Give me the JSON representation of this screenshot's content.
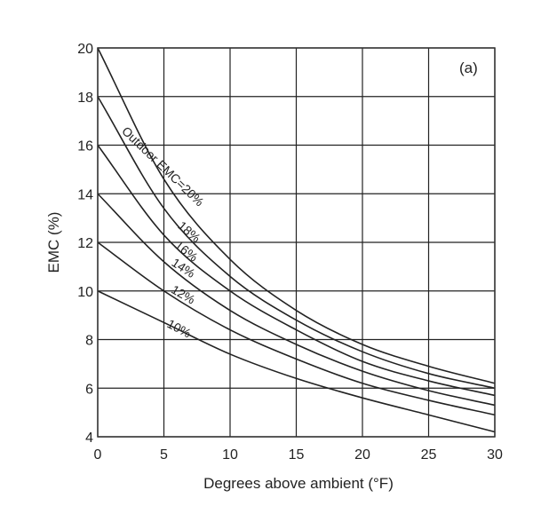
{
  "chart_data": {
    "type": "line",
    "panel_label": "(a)",
    "xlabel": "Degrees above ambient (°F)",
    "ylabel": "EMC (%)",
    "xlim": [
      0,
      30
    ],
    "ylim": [
      4,
      20
    ],
    "xticks": [
      0,
      5,
      10,
      15,
      20,
      25,
      30
    ],
    "yticks": [
      4,
      6,
      8,
      10,
      12,
      14,
      16,
      18,
      20
    ],
    "grid": true,
    "x": [
      0,
      5,
      10,
      15,
      20,
      25,
      30
    ],
    "series": [
      {
        "name": "Outdoor EMC=20%",
        "values": [
          20.0,
          14.6,
          11.3,
          9.2,
          7.8,
          6.9,
          6.2
        ]
      },
      {
        "name": "18%",
        "values": [
          18.0,
          13.4,
          10.6,
          8.8,
          7.5,
          6.6,
          6.0
        ]
      },
      {
        "name": "16%",
        "values": [
          16.0,
          12.3,
          10.0,
          8.4,
          7.1,
          6.3,
          5.7
        ]
      },
      {
        "name": "14%",
        "values": [
          14.0,
          11.2,
          9.2,
          7.8,
          6.7,
          5.9,
          5.3
        ]
      },
      {
        "name": "12%",
        "values": [
          12.0,
          10.0,
          8.4,
          7.2,
          6.2,
          5.5,
          4.9
        ]
      },
      {
        "name": "10%",
        "values": [
          10.0,
          8.7,
          7.4,
          6.4,
          5.6,
          4.9,
          4.2
        ]
      }
    ],
    "annotations": [
      {
        "text": "Outdoor EMC=20%",
        "x": 4.7,
        "y": 15.0,
        "angle": 44
      },
      {
        "text": "18%",
        "x": 6.7,
        "y": 12.3,
        "angle": 41
      },
      {
        "text": "16%",
        "x": 6.5,
        "y": 11.5,
        "angle": 38
      },
      {
        "text": "14%",
        "x": 6.3,
        "y": 10.8,
        "angle": 33
      },
      {
        "text": "12%",
        "x": 6.3,
        "y": 9.7,
        "angle": 30
      },
      {
        "text": "10%",
        "x": 6.0,
        "y": 8.3,
        "angle": 28
      }
    ]
  }
}
